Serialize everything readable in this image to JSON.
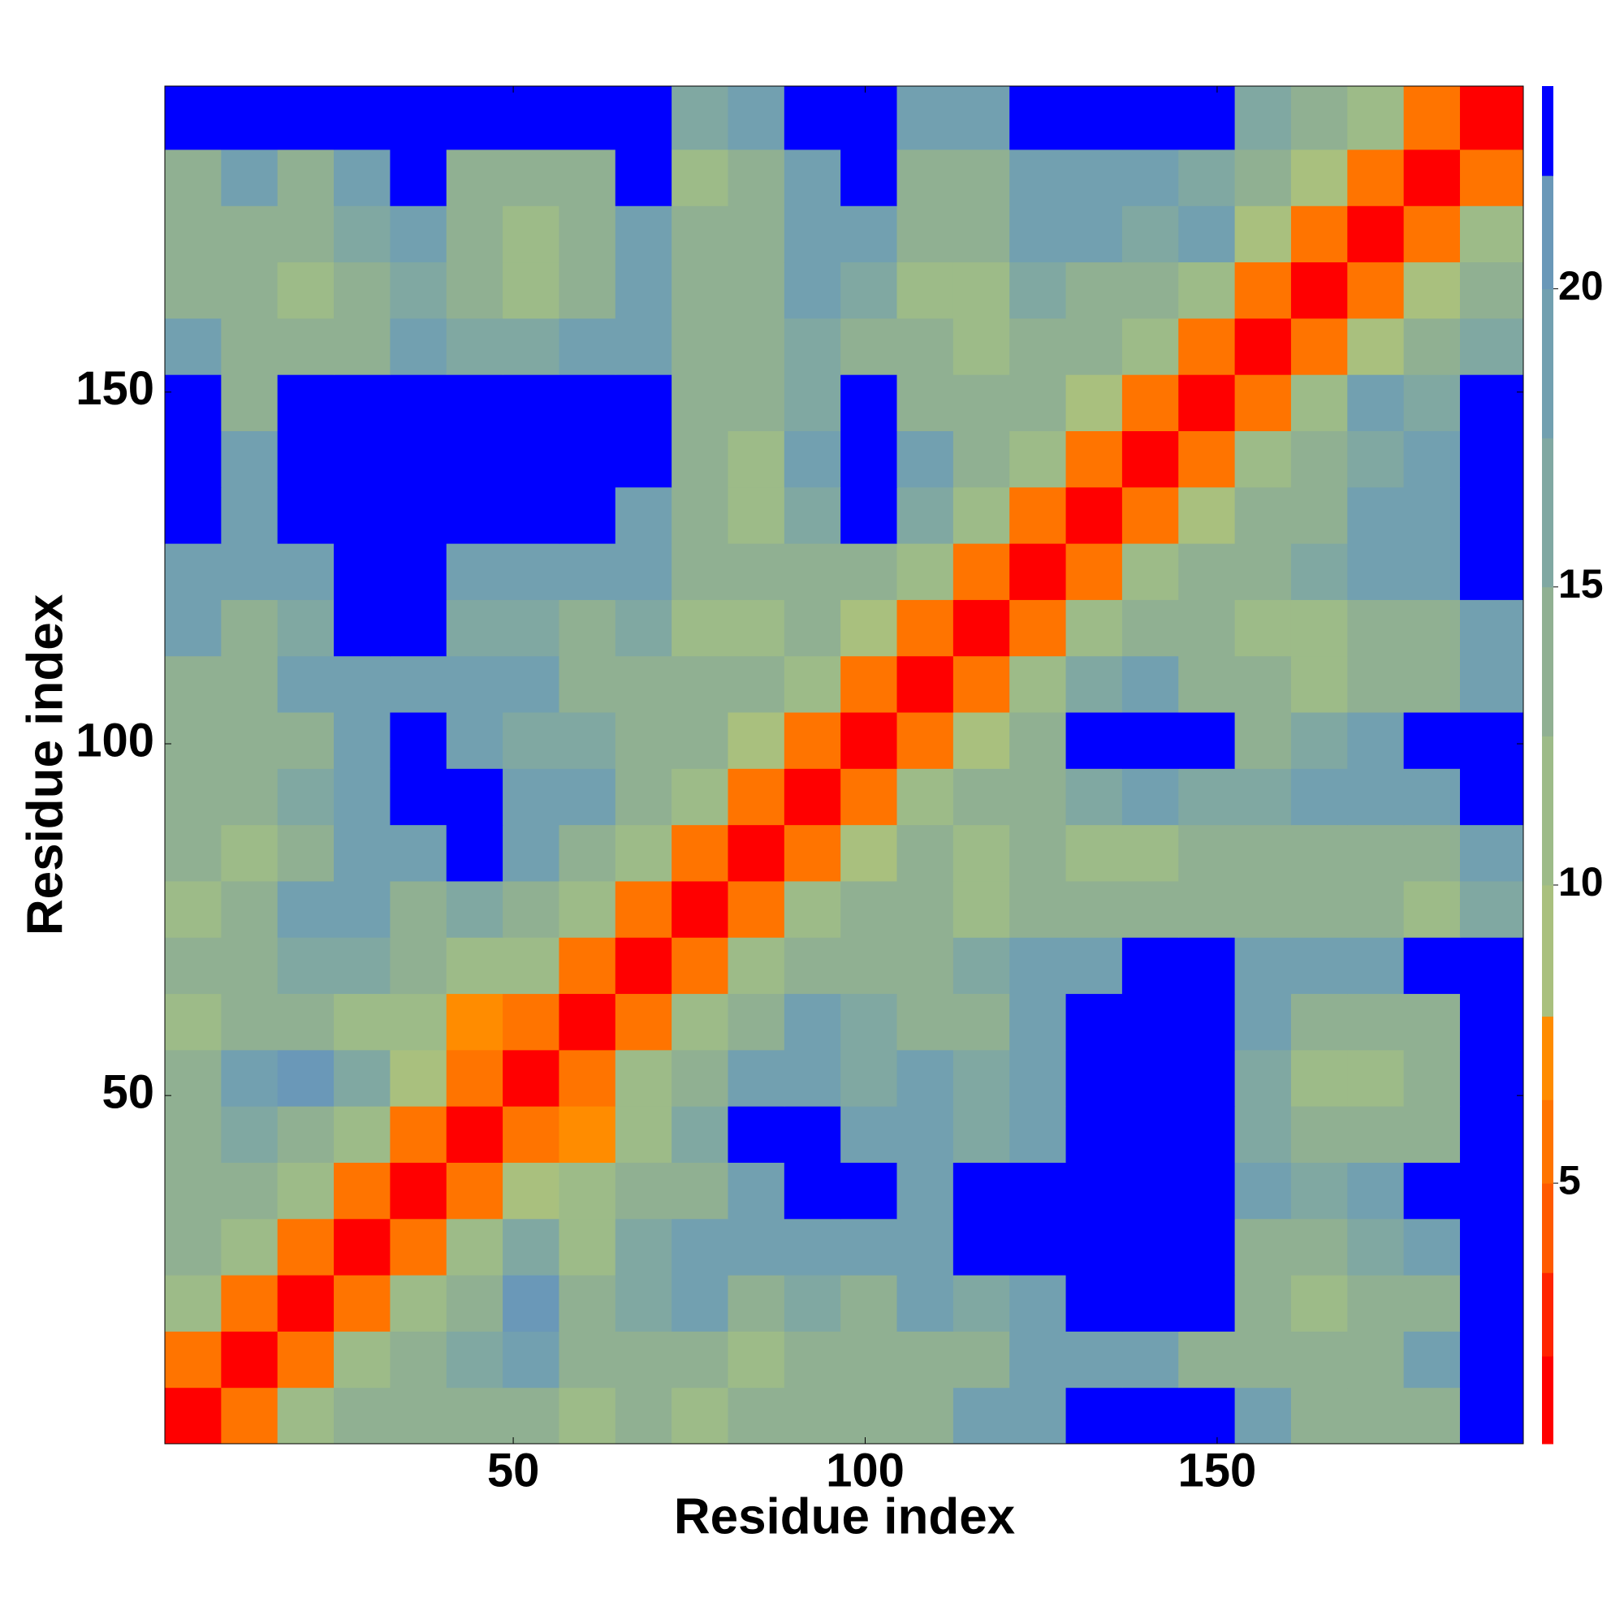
{
  "chart_data": {
    "type": "heatmap",
    "xlabel": "Residue index",
    "ylabel": "Residue index",
    "xlim": [
      0.5,
      193.5
    ],
    "ylim": [
      0.5,
      193.5
    ],
    "xticks": [
      50,
      100,
      150
    ],
    "yticks": [
      50,
      100,
      150
    ],
    "xbins": [
      0.5,
      8.5,
      16.5,
      24.5,
      32.5,
      40.5,
      48.5,
      56.5,
      64.5,
      72.5,
      80.5,
      88.5,
      96.5,
      104.5,
      112.5,
      120.5,
      128.5,
      136.5,
      144.5,
      152.5,
      160.5,
      168.5,
      176.5,
      184.5,
      193.5
    ],
    "ybins": [
      0.5,
      8.5,
      16.5,
      24.5,
      32.5,
      40.5,
      48.5,
      56.5,
      64.5,
      72.5,
      80.5,
      88.5,
      96.5,
      104.5,
      112.5,
      120.5,
      128.5,
      136.5,
      144.5,
      152.5,
      160.5,
      168.5,
      176.5,
      184.5,
      193.5
    ],
    "values": [
      [
        2,
        6,
        11,
        13,
        13,
        14,
        13,
        10,
        13,
        10,
        13,
        13,
        14,
        13,
        18,
        18,
        23,
        23,
        23,
        18,
        13,
        13,
        14,
        23
      ],
      [
        6,
        2,
        6,
        10,
        13,
        16,
        18,
        13,
        14,
        13,
        11,
        13,
        13,
        14,
        13,
        18,
        18,
        18,
        14,
        13,
        13,
        13,
        18,
        23
      ],
      [
        11,
        6,
        2,
        6,
        10,
        13,
        20,
        13,
        16,
        18,
        14,
        16,
        14,
        18,
        16,
        18,
        23,
        23,
        23,
        13,
        11,
        13,
        14,
        23
      ],
      [
        13,
        10,
        6,
        2,
        6,
        10,
        16,
        11,
        16,
        18,
        18,
        18,
        18,
        18,
        23,
        23,
        23,
        23,
        23,
        14,
        13,
        16,
        18,
        23
      ],
      [
        13,
        13,
        10,
        6,
        2,
        6,
        8,
        10,
        13,
        14,
        18,
        23,
        23,
        18,
        23,
        23,
        23,
        23,
        23,
        18,
        16,
        18,
        23,
        23
      ],
      [
        14,
        16,
        13,
        10,
        6,
        2,
        5,
        7,
        12,
        16,
        23,
        23,
        18,
        18,
        16,
        18,
        23,
        23,
        23,
        16,
        13,
        13,
        14,
        23
      ],
      [
        13,
        18,
        20,
        16,
        8,
        5,
        2,
        6,
        10,
        13,
        18,
        18,
        16,
        18,
        16,
        18,
        23,
        23,
        23,
        16,
        11,
        10,
        13,
        23
      ],
      [
        10,
        13,
        13,
        11,
        10,
        7,
        6,
        2,
        6,
        10,
        14,
        18,
        16,
        14,
        13,
        18,
        23,
        23,
        23,
        18,
        13,
        13,
        14,
        23
      ],
      [
        13,
        14,
        16,
        16,
        13,
        12,
        10,
        6,
        2,
        6,
        10,
        13,
        14,
        13,
        16,
        18,
        18,
        23,
        23,
        18,
        18,
        18,
        23,
        23
      ],
      [
        10,
        13,
        18,
        18,
        14,
        16,
        13,
        10,
        6,
        2,
        6,
        10,
        13,
        13,
        10,
        13,
        13,
        14,
        14,
        13,
        13,
        13,
        10,
        16
      ],
      [
        13,
        11,
        14,
        18,
        18,
        23,
        18,
        14,
        10,
        6,
        2,
        5,
        8,
        13,
        12,
        13,
        10,
        10,
        13,
        14,
        13,
        14,
        13,
        18
      ],
      [
        13,
        13,
        16,
        18,
        23,
        23,
        18,
        18,
        13,
        10,
        5,
        2,
        6,
        10,
        13,
        14,
        16,
        18,
        16,
        16,
        18,
        18,
        18,
        23
      ],
      [
        14,
        13,
        14,
        18,
        23,
        18,
        16,
        16,
        14,
        13,
        8,
        6,
        2,
        6,
        8,
        13,
        23,
        23,
        23,
        13,
        16,
        18,
        23,
        23
      ],
      [
        13,
        14,
        18,
        18,
        18,
        18,
        18,
        14,
        13,
        13,
        13,
        10,
        6,
        2,
        6,
        10,
        16,
        18,
        14,
        13,
        11,
        13,
        13,
        18
      ],
      [
        18,
        13,
        16,
        23,
        23,
        16,
        16,
        13,
        16,
        10,
        12,
        13,
        8,
        6,
        2,
        6,
        10,
        13,
        13,
        10,
        12,
        13,
        14,
        18
      ],
      [
        18,
        18,
        18,
        23,
        23,
        18,
        18,
        18,
        18,
        13,
        13,
        14,
        13,
        10,
        6,
        2,
        5,
        10,
        13,
        14,
        16,
        18,
        18,
        23
      ],
      [
        23,
        18,
        23,
        23,
        23,
        23,
        23,
        23,
        18,
        13,
        10,
        16,
        23,
        16,
        10,
        5,
        2,
        5,
        8,
        13,
        14,
        18,
        18,
        23
      ],
      [
        23,
        18,
        23,
        23,
        23,
        23,
        23,
        23,
        23,
        14,
        10,
        18,
        23,
        18,
        13,
        10,
        5,
        2,
        5,
        10,
        13,
        16,
        18,
        23
      ],
      [
        23,
        14,
        23,
        23,
        23,
        23,
        23,
        23,
        23,
        14,
        13,
        16,
        23,
        14,
        13,
        13,
        8,
        5,
        2,
        5,
        10,
        18,
        16,
        23
      ],
      [
        18,
        13,
        13,
        14,
        18,
        16,
        16,
        18,
        18,
        13,
        14,
        16,
        13,
        13,
        10,
        14,
        13,
        10,
        5,
        2,
        5,
        8,
        13,
        16
      ],
      [
        13,
        13,
        11,
        13,
        16,
        13,
        11,
        13,
        18,
        13,
        13,
        18,
        16,
        11,
        12,
        16,
        14,
        13,
        10,
        5,
        2,
        5,
        8,
        13
      ],
      [
        13,
        13,
        13,
        16,
        18,
        13,
        10,
        13,
        18,
        13,
        14,
        18,
        18,
        13,
        13,
        18,
        18,
        16,
        18,
        8,
        5,
        2,
        5,
        10
      ],
      [
        14,
        18,
        14,
        18,
        23,
        14,
        13,
        14,
        23,
        10,
        13,
        18,
        23,
        13,
        14,
        18,
        18,
        18,
        16,
        13,
        8,
        5,
        2,
        5
      ],
      [
        23,
        23,
        23,
        23,
        23,
        23,
        23,
        23,
        23,
        16,
        18,
        23,
        23,
        18,
        18,
        23,
        23,
        23,
        23,
        16,
        13,
        10,
        5,
        2
      ]
    ],
    "clim": [
      0.63,
      23.4
    ],
    "cticks": [
      5,
      10,
      15,
      20
    ],
    "colorscale": [
      {
        "from": 0.63,
        "to": 2.1,
        "color": "#ff0000"
      },
      {
        "from": 2.1,
        "to": 3.5,
        "color": "#ff2400"
      },
      {
        "from": 3.5,
        "to": 5.0,
        "color": "#ff5a00"
      },
      {
        "from": 5.0,
        "to": 6.4,
        "color": "#ff7400"
      },
      {
        "from": 6.4,
        "to": 7.8,
        "color": "#ff8c00"
      },
      {
        "from": 7.8,
        "to": 10,
        "color": "#a9c07e"
      },
      {
        "from": 10,
        "to": 12.5,
        "color": "#9dbb88"
      },
      {
        "from": 12.5,
        "to": 15,
        "color": "#90b092"
      },
      {
        "from": 15,
        "to": 17.5,
        "color": "#80a8a2"
      },
      {
        "from": 17.5,
        "to": 20,
        "color": "#72a0b0"
      },
      {
        "from": 20,
        "to": 21.9,
        "color": "#6a98b8"
      },
      {
        "from": 21.9,
        "to": 23.4,
        "color": "#0000ff"
      }
    ]
  }
}
